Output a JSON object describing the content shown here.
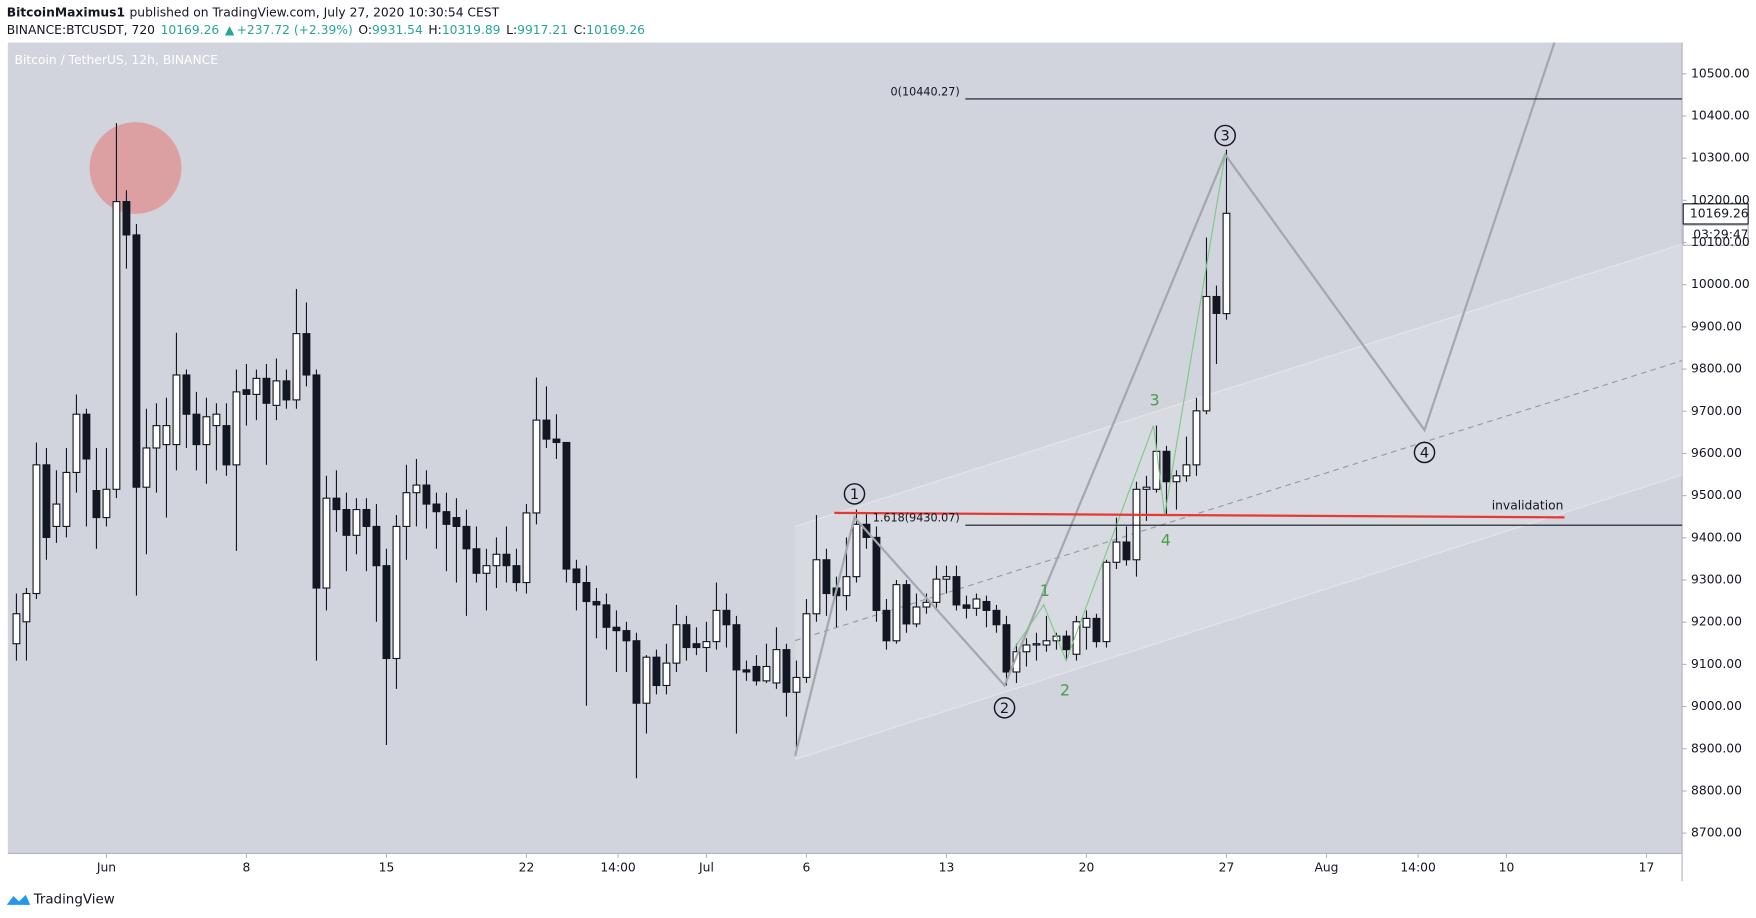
{
  "header": {
    "author": "BitcoinMaximus1",
    "published": "published on TradingView.com, July 27, 2020 10:30:54 CEST",
    "symbol": "BINANCE:BTCUSDT, 720",
    "change": "+237.72 (+2.39%)",
    "ohlc_labels": [
      "O:",
      "H:",
      "L:",
      "C:"
    ]
  },
  "footer": {
    "brand": "TradingView"
  },
  "chart_data": {
    "type": "candlestick",
    "title": "Bitcoin / TetherUS, 12h, BINANCE",
    "up_color": "#ffffff",
    "down_color": "#131722",
    "background": "#d1d4dc",
    "x": [
      148.5,
      149,
      149.5,
      150,
      150.5,
      151,
      151.5,
      152,
      152.5,
      153,
      153.5,
      154,
      154.5,
      155,
      155.5,
      156,
      156.5,
      157,
      157.5,
      158,
      158.5,
      159,
      159.5,
      160,
      160.5,
      161,
      161.5,
      162,
      162.5,
      163,
      163.5,
      164,
      164.5,
      165,
      165.5,
      166,
      166.5,
      167,
      167.5,
      168,
      168.5,
      169,
      169.5,
      170,
      170.5,
      171,
      171.5,
      172,
      172.5,
      173,
      173.5,
      174,
      174.5,
      175,
      175.5,
      176,
      176.5,
      177,
      177.5,
      178,
      178.5,
      179,
      179.5,
      180,
      180.5,
      181,
      181.5,
      182,
      182.5,
      183,
      183.5,
      184,
      184.5,
      185,
      185.5,
      186,
      186.5,
      187,
      187.5,
      188,
      188.5,
      189,
      189.5,
      190,
      190.5,
      191,
      191.5,
      192,
      192.5,
      193,
      193.5,
      194,
      194.5,
      195,
      195.5,
      196,
      196.5,
      197,
      197.5,
      198,
      198.5,
      199,
      199.5,
      200,
      200.5,
      201,
      201.5,
      202,
      202.5,
      203,
      203.5,
      204,
      204.5,
      205,
      205.5,
      206,
      206.5,
      207,
      207.5,
      208,
      208.5,
      209
    ],
    "open": [
      9149,
      9201,
      9268,
      9573,
      9427,
      9427,
      9555,
      9693,
      9512,
      9448,
      9515,
      10197,
      10118,
      9520,
      9613,
      9621,
      9621,
      9786,
      9693,
      9621,
      9666,
      9666,
      9573,
      9751,
      9740,
      9778,
      9714,
      9772,
      9727,
      9884,
      9786,
      9281,
      9494,
      9467,
      9406,
      9467,
      9427,
      9334,
      9114,
      9427,
      9507,
      9525,
      9480,
      9462,
      9448,
      9427,
      9374,
      9316,
      9334,
      9361,
      9334,
      9294,
      9459,
      9679,
      9634,
      9626,
      9326,
      9294,
      9249,
      9241,
      9188,
      9180,
      9156,
      9008,
      9117,
      9050,
      9103,
      9194,
      9149,
      9140,
      9154,
      9228,
      9194,
      9087,
      9095,
      9061,
      9056,
      9135,
      9034,
      9069,
      9220,
      9348,
      9281,
      9263,
      9308,
      9432,
      9401,
      9228,
      9156,
      9289,
      9196,
      9236,
      9247,
      9302,
      9308,
      9241,
      9233,
      9249,
      9228,
      9194,
      9082,
      9130,
      9146,
      9146,
      9156,
      9167,
      9124,
      9188,
      9209,
      9154,
      9342,
      9390,
      9348,
      9515,
      9515,
      9605,
      9533,
      9547,
      9573,
      9701,
      9972,
      9931.54
    ],
    "high": [
      9268,
      9281,
      9626,
      9613,
      9560,
      9613,
      9740,
      9706,
      9613,
      9613,
      10383,
      10224,
      10144,
      9706,
      9719,
      9732,
      9886,
      9799,
      9746,
      9732,
      9719,
      9719,
      9799,
      9812,
      9799,
      9812,
      9825,
      9799,
      9990,
      9958,
      9799,
      9547,
      9560,
      9507,
      9494,
      9494,
      9480,
      9374,
      9454,
      9573,
      9587,
      9560,
      9507,
      9507,
      9494,
      9467,
      9427,
      9374,
      9401,
      9427,
      9374,
      9480,
      9780,
      9759,
      9693,
      9626,
      9348,
      9334,
      9281,
      9268,
      9228,
      9201,
      9175,
      9122,
      9135,
      9149,
      9241,
      9215,
      9188,
      9201,
      9294,
      9268,
      9215,
      9109,
      9122,
      9149,
      9188,
      9149,
      9109,
      9255,
      9454,
      9374,
      9308,
      9401,
      9467,
      9459,
      9427,
      9255,
      9300,
      9300,
      9268,
      9268,
      9334,
      9334,
      9334,
      9263,
      9268,
      9263,
      9241,
      9215,
      9149,
      9162,
      9175,
      9215,
      9175,
      9180,
      9215,
      9228,
      9220,
      9348,
      9448,
      9427,
      9533,
      9547,
      9666,
      9618,
      9560,
      9640,
      9732,
      10112,
      9998,
      10319.89
    ],
    "low": [
      9109,
      9109,
      9255,
      9348,
      9388,
      9401,
      9507,
      9427,
      9374,
      9427,
      9494,
      10038,
      9263,
      9361,
      9507,
      9448,
      9560,
      9613,
      9560,
      9528,
      9560,
      9547,
      9369,
      9666,
      9679,
      9573,
      9679,
      9706,
      9706,
      9759,
      9109,
      9228,
      9414,
      9321,
      9361,
      9321,
      9201,
      8909,
      9042,
      9348,
      9427,
      9422,
      9374,
      9321,
      9294,
      9215,
      9294,
      9228,
      9281,
      9294,
      9273,
      9268,
      9432,
      9613,
      9587,
      9294,
      9228,
      9002,
      9162,
      9135,
      9082,
      9082,
      8830,
      8936,
      9029,
      9029,
      9082,
      9109,
      9122,
      9082,
      9135,
      9140,
      8936,
      9061,
      9050,
      9056,
      9042,
      8976,
      8896,
      9056,
      9201,
      9215,
      9188,
      9228,
      9294,
      9374,
      9201,
      9135,
      9149,
      9175,
      9188,
      9220,
      9228,
      9268,
      9228,
      9209,
      9215,
      9188,
      9175,
      9050,
      9056,
      9095,
      9109,
      9130,
      9135,
      9109,
      9109,
      9135,
      9140,
      9140,
      9326,
      9334,
      9308,
      9440,
      9507,
      9454,
      9467,
      9533,
      9547,
      9693,
      9812,
      9917.21
    ],
    "close": [
      9220,
      9268,
      9573,
      9401,
      9480,
      9555,
      9693,
      9587,
      9448,
      9515,
      10197,
      10118,
      9520,
      9613,
      9666,
      9666,
      9786,
      9693,
      9621,
      9687,
      9693,
      9573,
      9746,
      9740,
      9778,
      9719,
      9772,
      9727,
      9884,
      9786,
      9281,
      9494,
      9467,
      9406,
      9467,
      9427,
      9334,
      9114,
      9427,
      9507,
      9525,
      9480,
      9462,
      9432,
      9427,
      9374,
      9316,
      9334,
      9361,
      9334,
      9294,
      9459,
      9679,
      9634,
      9626,
      9326,
      9294,
      9249,
      9241,
      9188,
      9180,
      9156,
      9008,
      9117,
      9050,
      9103,
      9194,
      9140,
      9140,
      9154,
      9228,
      9194,
      9087,
      9082,
      9061,
      9095,
      9135,
      9034,
      9069,
      9220,
      9348,
      9268,
      9263,
      9308,
      9432,
      9401,
      9228,
      9156,
      9289,
      9196,
      9236,
      9247,
      9302,
      9308,
      9241,
      9233,
      9255,
      9228,
      9194,
      9082,
      9130,
      9146,
      9149,
      9156,
      9167,
      9135,
      9201,
      9209,
      9154,
      9342,
      9390,
      9348,
      9515,
      9520,
      9605,
      9533,
      9547,
      9573,
      9701,
      9972,
      9932,
      10169.26
    ],
    "xlim": [
      148.07,
      231.78
    ],
    "xticks": [
      {
        "value": 153,
        "label": "Jun"
      },
      {
        "value": 160,
        "label": "8"
      },
      {
        "value": 167,
        "label": "15"
      },
      {
        "value": 174,
        "label": "22"
      },
      {
        "value": 178.58,
        "label": "14:00"
      },
      {
        "value": 183,
        "label": "Jul"
      },
      {
        "value": 188,
        "label": "6"
      },
      {
        "value": 195,
        "label": "13"
      },
      {
        "value": 202,
        "label": "20"
      },
      {
        "value": 209,
        "label": "27"
      },
      {
        "value": 214,
        "label": "Aug"
      },
      {
        "value": 218.58,
        "label": "14:00"
      },
      {
        "value": 223,
        "label": "10"
      },
      {
        "value": 230,
        "label": "17"
      }
    ],
    "ylim": [
      8652,
      10574
    ],
    "yticks": [
      {
        "value": 8700,
        "label": "8700.00"
      },
      {
        "value": 8800,
        "label": "8800.00"
      },
      {
        "value": 8900,
        "label": "8900.00"
      },
      {
        "value": 9000,
        "label": "9000.00"
      },
      {
        "value": 9100,
        "label": "9100.00"
      },
      {
        "value": 9200,
        "label": "9200.00"
      },
      {
        "value": 9300,
        "label": "9300.00"
      },
      {
        "value": 9400,
        "label": "9400.00"
      },
      {
        "value": 9500,
        "label": "9500.00"
      },
      {
        "value": 9600,
        "label": "9600.00"
      },
      {
        "value": 9700,
        "label": "9700.00"
      },
      {
        "value": 9800,
        "label": "9800.00"
      },
      {
        "value": 9900,
        "label": "9900.00"
      },
      {
        "value": 10000,
        "label": "10000.00"
      },
      {
        "value": 10100,
        "label": "10100.00"
      },
      {
        "value": 10200,
        "label": "10200.00"
      },
      {
        "value": 10300,
        "label": "10300.00"
      },
      {
        "value": 10400,
        "label": "10400.00"
      },
      {
        "value": 10500,
        "label": "10500.00"
      }
    ],
    "fib_levels": [
      {
        "value": 10440.27,
        "label": "0(10440.27)"
      },
      {
        "value": 9430.07,
        "label": "1.618(9430.07)"
      }
    ],
    "annotation": "invalidation",
    "wave_labels": [
      "1",
      "2",
      "3",
      "4"
    ],
    "subwave_labels": [
      "1",
      "2",
      "3",
      "4"
    ],
    "countdown": "03:29:47"
  }
}
